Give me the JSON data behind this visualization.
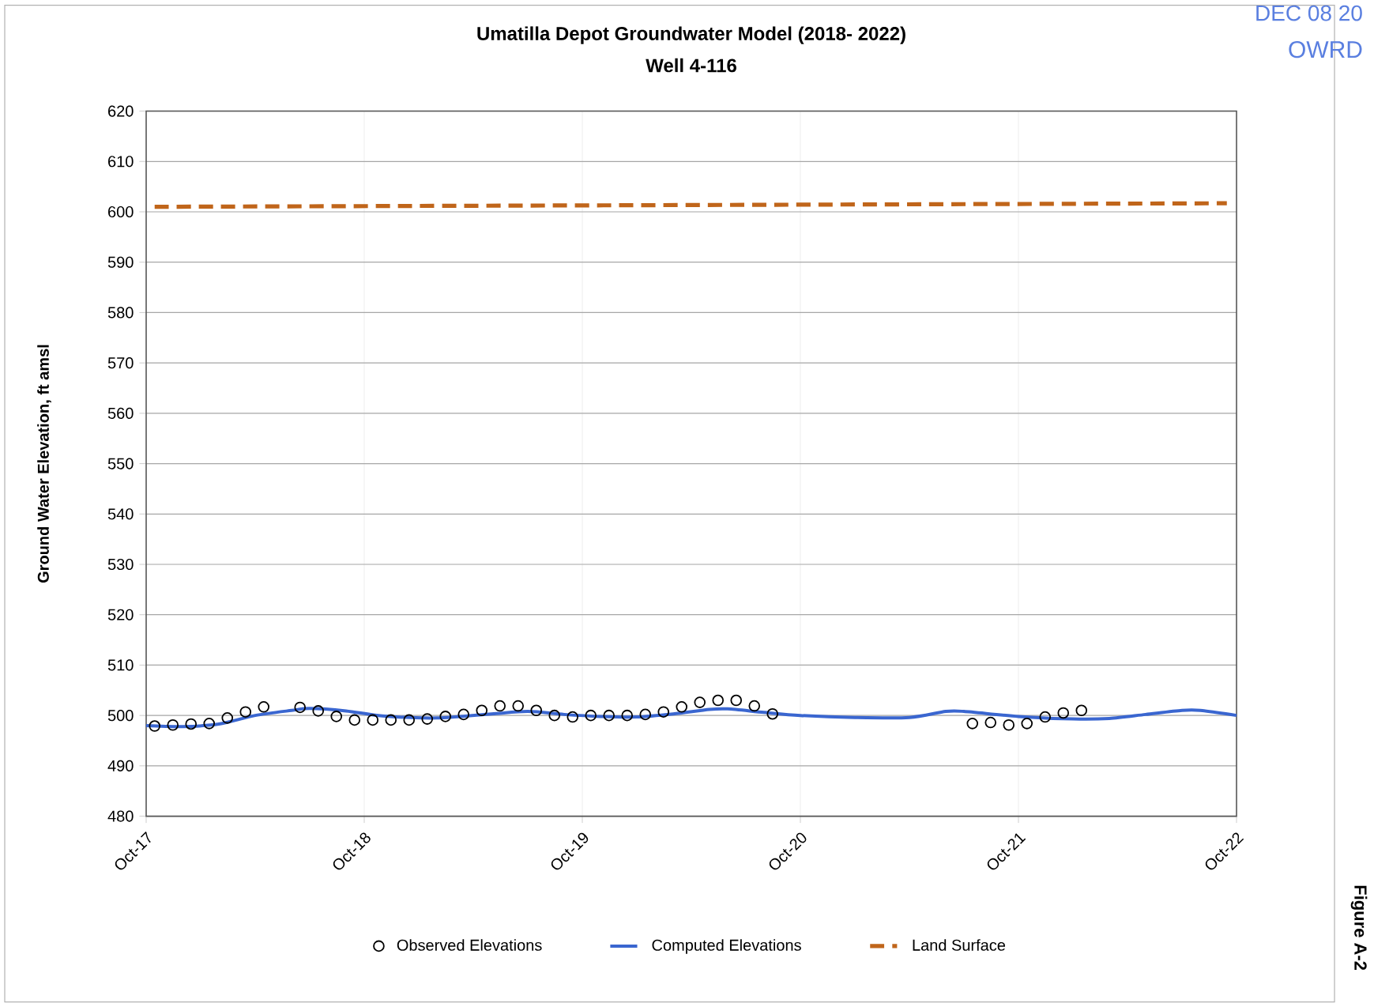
{
  "chart_data": {
    "type": "line",
    "title": "Umatilla Depot Groundwater Model (2018- 2022)",
    "subtitle": "Well 4-116",
    "ylabel": "Ground Water Elevation, ft amsl",
    "xlim": [
      "2017-10-01",
      "2022-10-01"
    ],
    "xticks": [
      {
        "value": "2017-10-01",
        "label": "Oct-17"
      },
      {
        "value": "2018-10-01",
        "label": "Oct-18"
      },
      {
        "value": "2019-10-01",
        "label": "Oct-19"
      },
      {
        "value": "2020-10-01",
        "label": "Oct-20"
      },
      {
        "value": "2021-10-01",
        "label": "Oct-21"
      },
      {
        "value": "2022-10-01",
        "label": "Oct-22"
      }
    ],
    "ylim": [
      480,
      620
    ],
    "yticks": [
      480,
      490,
      500,
      510,
      520,
      530,
      540,
      550,
      560,
      570,
      580,
      590,
      600,
      610,
      620
    ],
    "grid": true,
    "legend": "bottom",
    "series": [
      {
        "name": "Observed  Elevations",
        "type": "scatter",
        "marker": "circle",
        "color": "#000000",
        "x": [
          "2017-10-15",
          "2017-11-15",
          "2017-12-15",
          "2018-01-15",
          "2018-02-15",
          "2018-03-15",
          "2018-04-15",
          "2018-06-15",
          "2018-07-15",
          "2018-08-15",
          "2018-09-15",
          "2018-10-15",
          "2018-11-15",
          "2018-12-15",
          "2019-01-15",
          "2019-02-15",
          "2019-03-15",
          "2019-04-15",
          "2019-05-15",
          "2019-06-15",
          "2019-07-15",
          "2019-08-15",
          "2019-09-15",
          "2019-10-15",
          "2019-11-15",
          "2019-12-15",
          "2020-01-15",
          "2020-02-15",
          "2020-03-15",
          "2020-04-15",
          "2020-05-15",
          "2020-06-15",
          "2020-07-15",
          "2020-08-15",
          "2021-07-15",
          "2021-08-15",
          "2021-09-15",
          "2021-10-15",
          "2021-11-15",
          "2021-12-15",
          "2022-01-15"
        ],
        "values": [
          497.9,
          498.1,
          498.3,
          498.4,
          499.5,
          500.7,
          501.7,
          501.6,
          500.9,
          499.8,
          499.1,
          499.1,
          499.1,
          499.1,
          499.3,
          499.8,
          500.2,
          501.0,
          501.9,
          501.9,
          501.0,
          500.0,
          499.7,
          500.0,
          500.0,
          500.0,
          500.2,
          500.7,
          501.7,
          502.6,
          503.0,
          503.0,
          501.9,
          500.3,
          498.4,
          498.6,
          498.1,
          498.4,
          499.7,
          500.5,
          501.0
        ]
      },
      {
        "name": "Computed Elevations",
        "line_style": "solid",
        "color": "#3a66d0",
        "x": [
          "2017-10-01",
          "2017-12-01",
          "2018-02-01",
          "2018-04-01",
          "2018-06-01",
          "2018-07-01",
          "2018-09-01",
          "2018-11-01",
          "2019-02-01",
          "2019-05-01",
          "2019-07-01",
          "2019-09-01",
          "2019-11-01",
          "2020-01-01",
          "2020-03-01",
          "2020-05-01",
          "2020-06-01",
          "2020-08-01",
          "2020-10-01",
          "2021-01-01",
          "2021-04-01",
          "2021-06-01",
          "2021-07-01",
          "2021-10-01",
          "2022-01-01",
          "2022-03-01",
          "2022-05-01",
          "2022-07-01",
          "2022-08-01",
          "2022-10-01"
        ],
        "values": [
          498.0,
          497.8,
          498.3,
          500.0,
          501.0,
          501.4,
          500.9,
          499.9,
          499.5,
          500.3,
          500.8,
          500.2,
          499.8,
          499.7,
          500.3,
          501.2,
          501.3,
          500.6,
          500.0,
          499.6,
          499.6,
          500.8,
          500.8,
          499.8,
          499.3,
          499.4,
          500.2,
          501.0,
          501.0,
          500.0
        ]
      },
      {
        "name": "Land Surface",
        "line_style": "dashed",
        "color": "#c0651a",
        "x": [
          "2017-10-15",
          "2022-09-15"
        ],
        "values": [
          601.0,
          601.7
        ]
      }
    ],
    "annotations": [
      "Figure A-2",
      "DEC 08 20",
      "OWRD"
    ]
  }
}
